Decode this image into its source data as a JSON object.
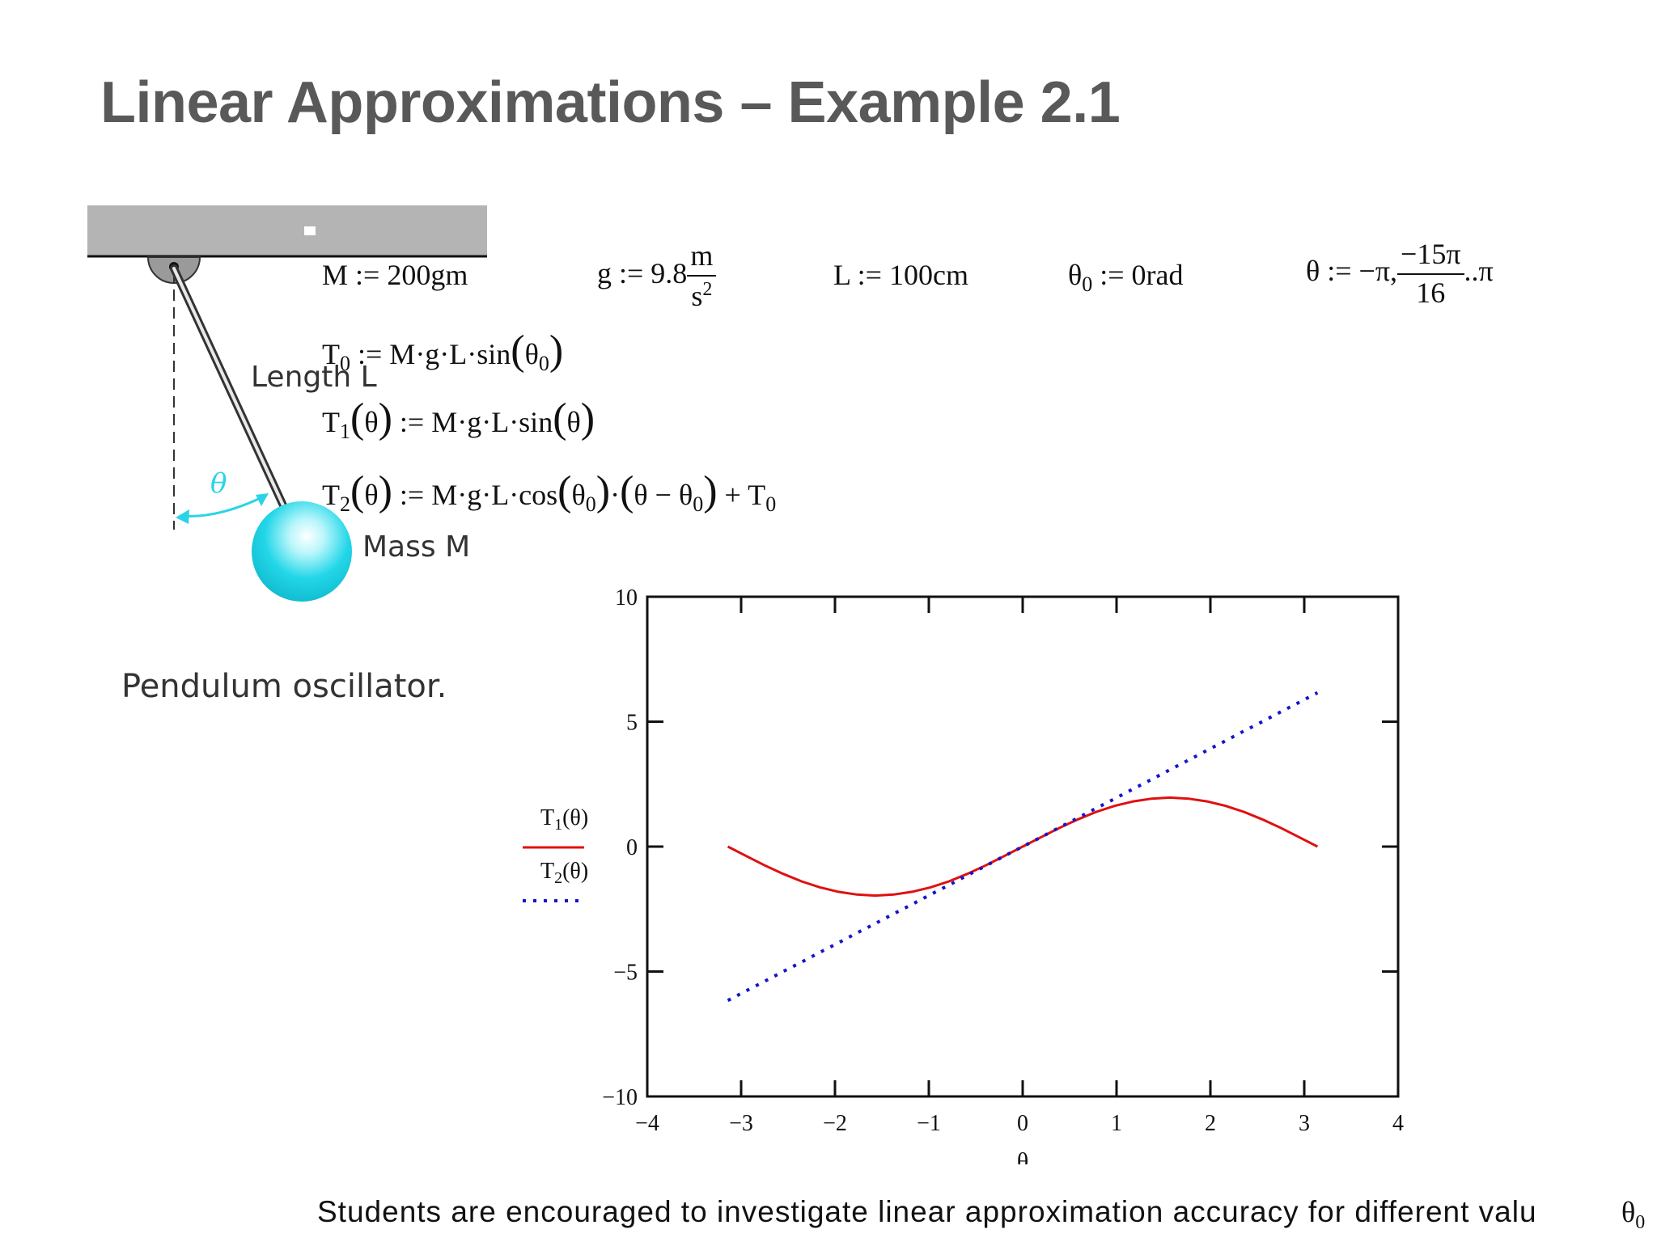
{
  "slide": {
    "title": "Linear Approximations – Example 2.1",
    "footer": "Students are encouraged to investigate linear approximation accuracy for different valu",
    "footer_end_symbol": "θ",
    "footer_end_sub": "0"
  },
  "figure": {
    "length_label": "Length L",
    "mass_label": "Mass M",
    "angle_label": "θ",
    "caption": "Pendulum oscillator.",
    "colors": {
      "ceiling": "#b4b4b4",
      "mass": "#22d6e8",
      "angle": "#2ad4e6",
      "rod": "#333333"
    }
  },
  "definitions": {
    "M": "M := 200gm",
    "g_prefix": "g := 9.8",
    "g_num": "m",
    "g_den": "s",
    "g_den_exp": "2",
    "L": "L := 100cm",
    "theta0_a": "θ",
    "theta0_sub": "0",
    "theta0_b": " := 0rad",
    "theta_prefix": "θ := −π,",
    "theta_num": "−15π",
    "theta_den": "16",
    "theta_suffix": "..π",
    "T0_name": "T",
    "T0_sub": "0",
    "T0_body_a": " := M·g·L·sin",
    "T0_arg": "θ",
    "T0_arg_sub": "0",
    "T1_name": "T",
    "T1_sub": "1",
    "T1_arg": "θ",
    "T1_body": " := M·g·L·sin",
    "T1_body_arg": "θ",
    "T2_name": "T",
    "T2_sub": "2",
    "T2_arg": "θ",
    "T2_body_a": " := M·g·L·cos",
    "T2_cos_arg": "θ",
    "T2_cos_sub": "0",
    "T2_mul": "·",
    "T2_diff_a": "θ − θ",
    "T2_diff_sub": "0",
    "T2_plus": " + T",
    "T2_plus_sub": "0"
  },
  "chart_data": {
    "type": "line",
    "xlabel": "θ",
    "xlim": [
      -4,
      4
    ],
    "ylim": [
      -10,
      10
    ],
    "xticks": [
      -4,
      -3,
      -2,
      -1,
      0,
      1,
      2,
      3,
      4
    ],
    "xtick_labels": [
      "−4",
      "−3",
      "−2",
      "−1",
      "0",
      "1",
      "2",
      "3",
      "4"
    ],
    "yticks": [
      -10,
      -5,
      0,
      5,
      10
    ],
    "ytick_labels": [
      "−10",
      "−5",
      "0",
      "5",
      "10"
    ],
    "legend_position": "left",
    "series": [
      {
        "name": "T1(θ)",
        "legend_main": "T",
        "legend_sub": "1",
        "legend_arg": "(θ)",
        "color": "#e01010",
        "style": "solid",
        "x": [
          -3.1416,
          -2.9452,
          -2.7489,
          -2.5525,
          -2.3562,
          -2.1598,
          -1.9635,
          -1.7671,
          -1.5708,
          -1.3744,
          -1.1781,
          -0.9817,
          -0.7854,
          -0.589,
          -0.3927,
          -0.1963,
          0,
          0.1963,
          0.3927,
          0.589,
          0.7854,
          0.9817,
          1.1781,
          1.3744,
          1.5708,
          1.7671,
          1.9635,
          2.1598,
          2.3562,
          2.5525,
          2.7489,
          2.9452,
          3.1416
        ],
        "y": [
          0,
          -0.38,
          -0.75,
          -1.09,
          -1.39,
          -1.63,
          -1.81,
          -1.92,
          -1.96,
          -1.92,
          -1.81,
          -1.63,
          -1.39,
          -1.09,
          -0.75,
          -0.38,
          0,
          0.38,
          0.75,
          1.09,
          1.39,
          1.63,
          1.81,
          1.92,
          1.96,
          1.92,
          1.81,
          1.63,
          1.39,
          1.09,
          0.75,
          0.38,
          0
        ]
      },
      {
        "name": "T2(θ)",
        "legend_main": "T",
        "legend_sub": "2",
        "legend_arg": "(θ)",
        "color": "#1414cc",
        "style": "dotted",
        "x": [
          -3.1416,
          -2.9452,
          -2.7489,
          -2.5525,
          -2.3562,
          -2.1598,
          -1.9635,
          -1.7671,
          -1.5708,
          -1.3744,
          -1.1781,
          -0.9817,
          -0.7854,
          -0.589,
          -0.3927,
          -0.1963,
          0,
          0.1963,
          0.3927,
          0.589,
          0.7854,
          0.9817,
          1.1781,
          1.3744,
          1.5708,
          1.7671,
          1.9635,
          2.1598,
          2.3562,
          2.5525,
          2.7489,
          2.9452,
          3.1416
        ],
        "y": [
          -6.16,
          -5.77,
          -5.39,
          -5.0,
          -4.62,
          -4.23,
          -3.85,
          -3.46,
          -3.08,
          -2.69,
          -2.31,
          -1.92,
          -1.54,
          -1.15,
          -0.77,
          -0.38,
          0,
          0.38,
          0.77,
          1.15,
          1.54,
          1.92,
          2.31,
          2.69,
          3.08,
          3.46,
          3.85,
          4.23,
          4.62,
          5.0,
          5.39,
          5.77,
          6.16
        ]
      }
    ]
  }
}
